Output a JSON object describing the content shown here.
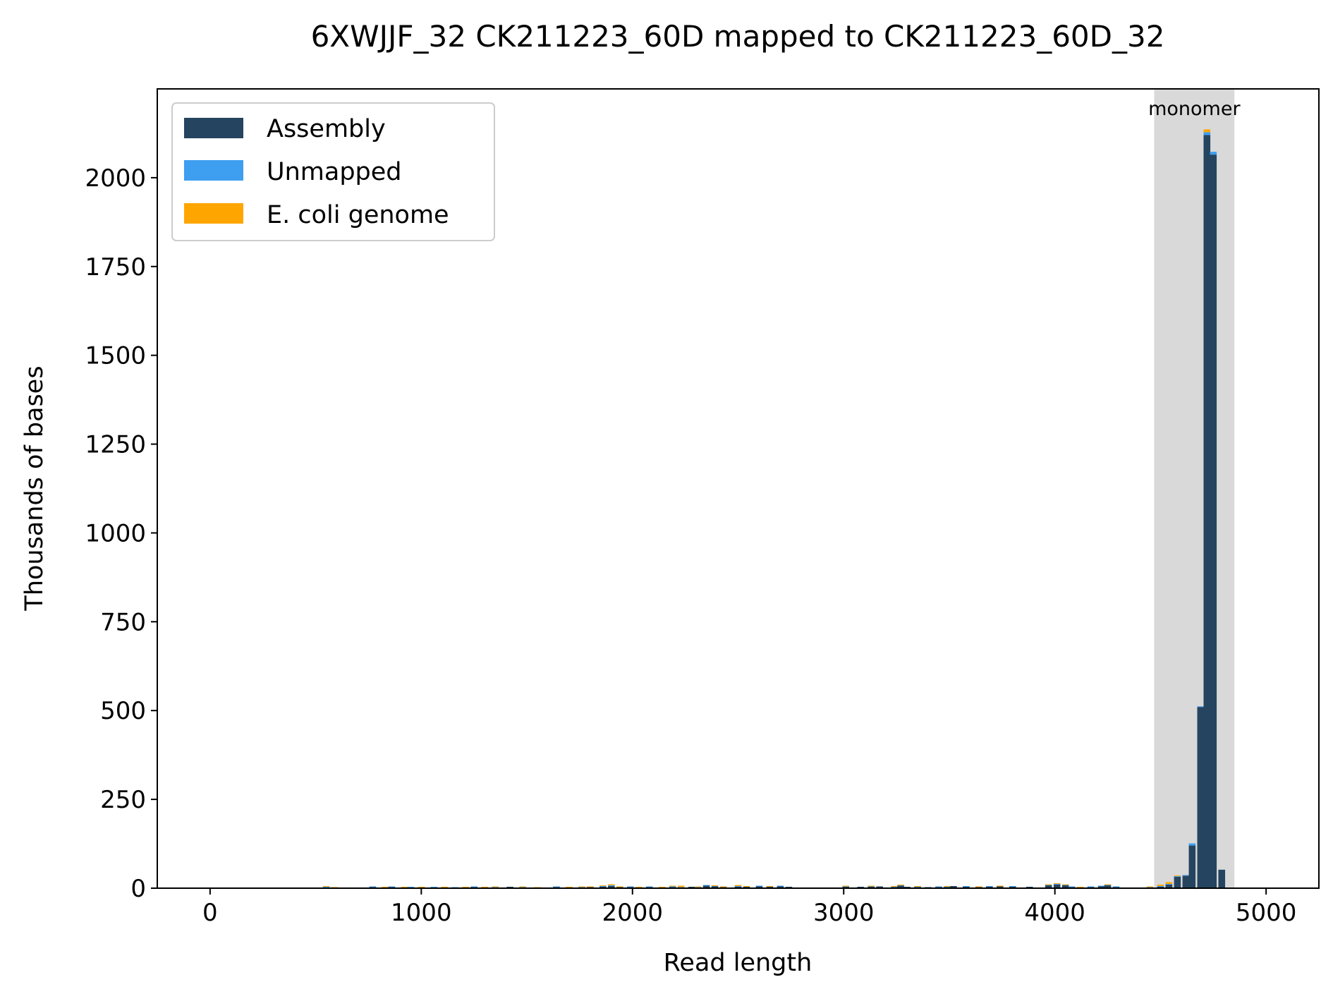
{
  "chart_data": {
    "type": "bar",
    "stacked": true,
    "title": "6XWJJF_32 CK211223_60D mapped to CK211223_60D_32",
    "xlabel": "Read length",
    "ylabel": "Thousands of bases",
    "xlim": [
      -250,
      5250
    ],
    "ylim": [
      0,
      2250
    ],
    "xticks": [
      0,
      1000,
      2000,
      3000,
      4000,
      5000
    ],
    "yticks": [
      0,
      250,
      500,
      750,
      1000,
      1250,
      1500,
      1750,
      2000
    ],
    "grid": false,
    "legend_position": "top-left",
    "bin_width": 32,
    "colors": {
      "Assembly": "#25445f",
      "Unmapped": "#3e9ef0",
      "E. coli genome": "#ffa500",
      "region": "#d9d9d9"
    },
    "annotations": [
      {
        "label": "monomer",
        "x_range": [
          4470,
          4850
        ]
      }
    ],
    "x": [
      550,
      590,
      770,
      830,
      860,
      920,
      950,
      1000,
      1060,
      1110,
      1160,
      1210,
      1250,
      1300,
      1350,
      1420,
      1480,
      1550,
      1640,
      1700,
      1760,
      1800,
      1860,
      1900,
      1940,
      1990,
      2030,
      2080,
      2140,
      2190,
      2230,
      2280,
      2310,
      2350,
      2390,
      2430,
      2500,
      2540,
      2600,
      2650,
      2700,
      2740,
      3010,
      3080,
      3130,
      3170,
      3240,
      3270,
      3300,
      3350,
      3400,
      3450,
      3490,
      3520,
      3580,
      3640,
      3690,
      3740,
      3800,
      3880,
      3970,
      4010,
      4050,
      4080,
      4120,
      4170,
      4220,
      4250,
      4290,
      4340,
      4390,
      4450,
      4500,
      4540,
      4580,
      4620,
      4650,
      4690,
      4720,
      4750,
      4790,
      4930
    ],
    "series": [
      {
        "name": "Assembly",
        "values": [
          3,
          2,
          4,
          3,
          4,
          2,
          3,
          3,
          3,
          3,
          2,
          3,
          4,
          3,
          2,
          4,
          3,
          2,
          4,
          3,
          3,
          3,
          5,
          6,
          4,
          4,
          3,
          4,
          3,
          4,
          2,
          4,
          3,
          8,
          6,
          3,
          5,
          4,
          6,
          5,
          6,
          4,
          5,
          4,
          5,
          5,
          4,
          7,
          4,
          4,
          3,
          4,
          4,
          6,
          5,
          4,
          5,
          6,
          5,
          4,
          8,
          10,
          8,
          4,
          3,
          4,
          6,
          8,
          4,
          2,
          1,
          2,
          5,
          10,
          32,
          35,
          120,
          510,
          2120,
          2065,
          52,
          2
        ]
      },
      {
        "name": "Unmapped",
        "values": [
          1,
          0,
          1,
          0,
          1,
          0,
          1,
          0,
          1,
          0,
          1,
          0,
          1,
          0,
          1,
          0,
          1,
          0,
          1,
          0,
          1,
          0,
          1,
          2,
          0,
          1,
          0,
          1,
          0,
          1,
          1,
          0,
          1,
          1,
          1,
          0,
          1,
          0,
          1,
          0,
          1,
          0,
          1,
          0,
          1,
          0,
          1,
          2,
          0,
          1,
          0,
          1,
          1,
          0,
          1,
          0,
          1,
          0,
          1,
          0,
          2,
          3,
          2,
          1,
          0,
          1,
          1,
          2,
          1,
          0,
          0,
          1,
          1,
          2,
          2,
          2,
          6,
          2,
          8,
          8,
          0,
          0
        ]
      },
      {
        "name": "E. coli genome",
        "values": [
          2,
          1,
          0,
          1,
          0,
          2,
          0,
          1,
          0,
          1,
          0,
          1,
          0,
          1,
          2,
          0,
          1,
          1,
          0,
          1,
          1,
          2,
          2,
          3,
          1,
          0,
          1,
          0,
          1,
          2,
          4,
          0,
          1,
          0,
          1,
          2,
          3,
          2,
          0,
          1,
          0,
          0,
          1,
          0,
          1,
          0,
          1,
          1,
          0,
          1,
          0,
          0,
          1,
          0,
          0,
          1,
          0,
          1,
          0,
          0,
          1,
          1,
          1,
          0,
          1,
          0,
          0,
          1,
          0,
          0,
          0,
          2,
          4,
          5,
          2,
          0,
          0,
          0,
          8,
          0,
          0,
          0
        ]
      }
    ]
  }
}
